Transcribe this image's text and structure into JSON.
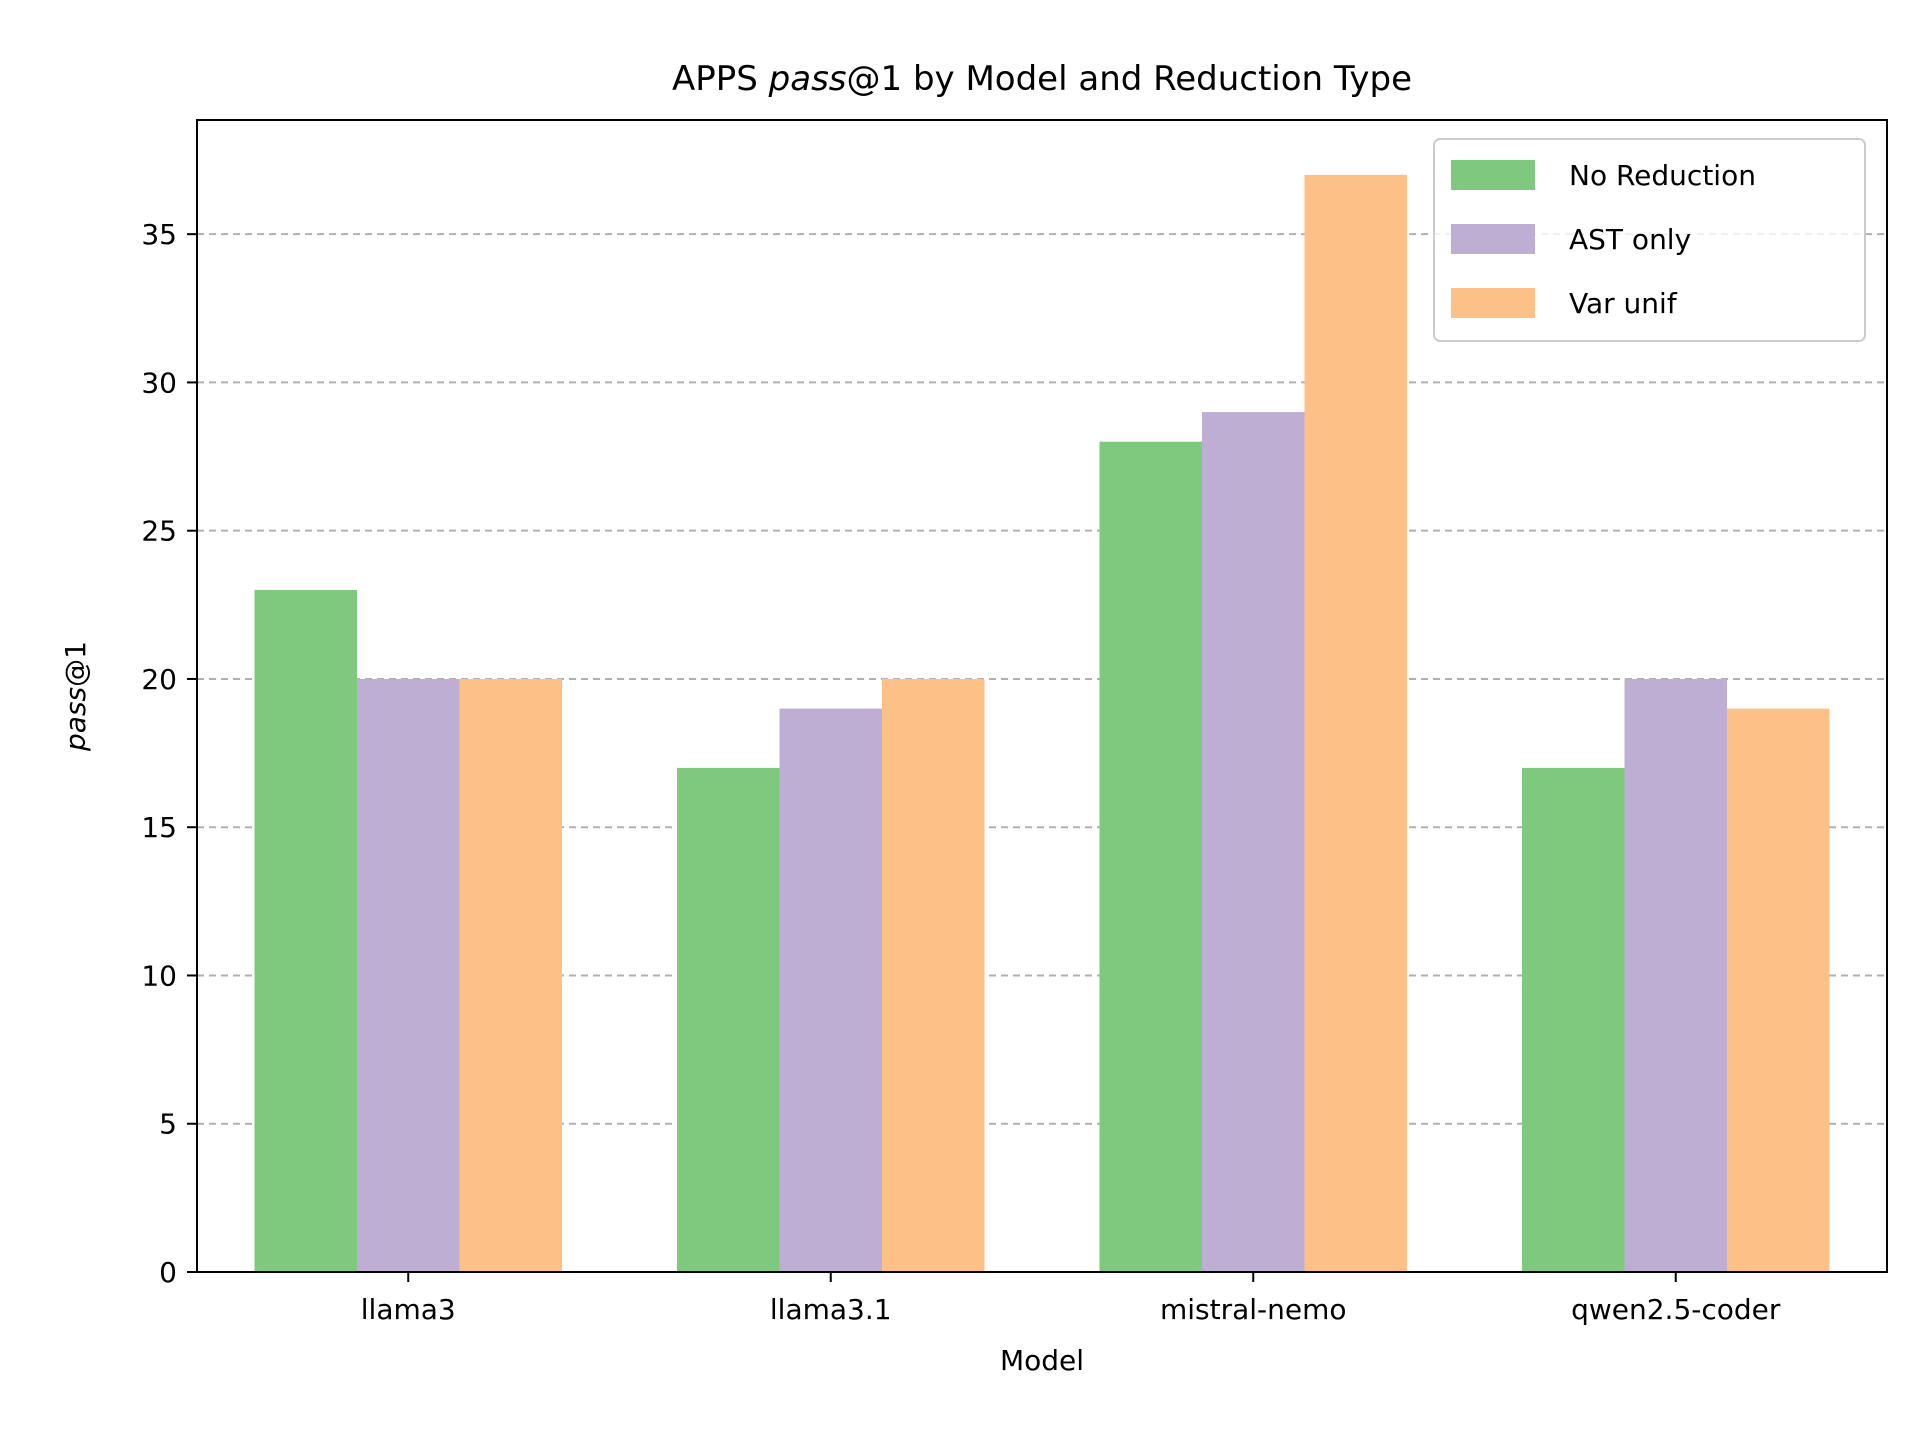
{
  "chart_data": {
    "type": "bar",
    "title_prefix": "APPS ",
    "title_italic": "pass",
    "title_suffix": "@1 by Model and Reduction Type",
    "xlabel": "Model",
    "ylabel_italic": "pass",
    "ylabel_suffix": "@1",
    "categories": [
      "llama3",
      "llama3.1",
      "mistral-nemo",
      "qwen2.5-coder"
    ],
    "series": [
      {
        "name": "No Reduction",
        "color": "#7fc97f",
        "values": [
          23,
          17,
          28,
          17
        ]
      },
      {
        "name": "AST only",
        "color": "#beaed4",
        "values": [
          20,
          19,
          29,
          20
        ]
      },
      {
        "name": "Var unif",
        "color": "#fdc086",
        "values": [
          20,
          20,
          37,
          19
        ]
      }
    ],
    "ylim": [
      0,
      38.85
    ],
    "yticks": [
      "0",
      "5",
      "10",
      "15",
      "20",
      "25",
      "30",
      "35"
    ],
    "grid": "y-dashed",
    "legend_position": "top-right"
  }
}
